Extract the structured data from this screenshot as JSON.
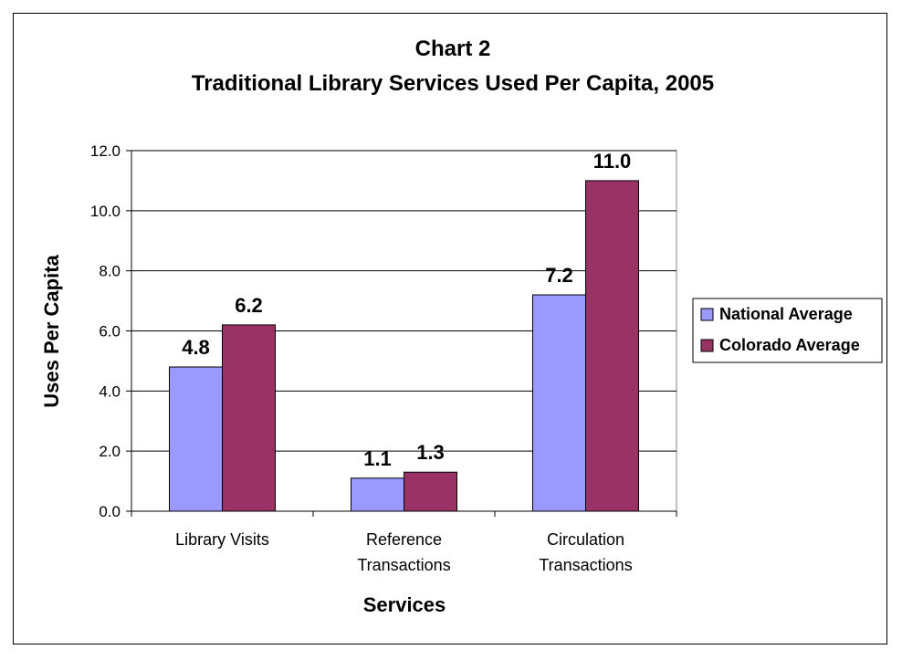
{
  "chart_data": {
    "type": "bar",
    "title": "Chart 2",
    "subtitle": "Traditional Library Services Used Per Capita, 2005",
    "xlabel": "Services",
    "ylabel": "Uses Per Capita",
    "categories": [
      [
        "Library Visits"
      ],
      [
        "Reference",
        "Transactions"
      ],
      [
        "Circulation",
        "Transactions"
      ]
    ],
    "series": [
      {
        "name": "National Average",
        "values": [
          4.8,
          1.1,
          7.2
        ],
        "color": "#9999ff"
      },
      {
        "name": "Colorado Average",
        "values": [
          6.2,
          1.3,
          11.0
        ],
        "color": "#993366"
      }
    ],
    "ylim": [
      0,
      12
    ],
    "yticks": [
      "0.0",
      "2.0",
      "4.0",
      "6.0",
      "8.0",
      "10.0",
      "12.0"
    ],
    "grid": true,
    "legend_position": "right",
    "value_labels": true
  }
}
